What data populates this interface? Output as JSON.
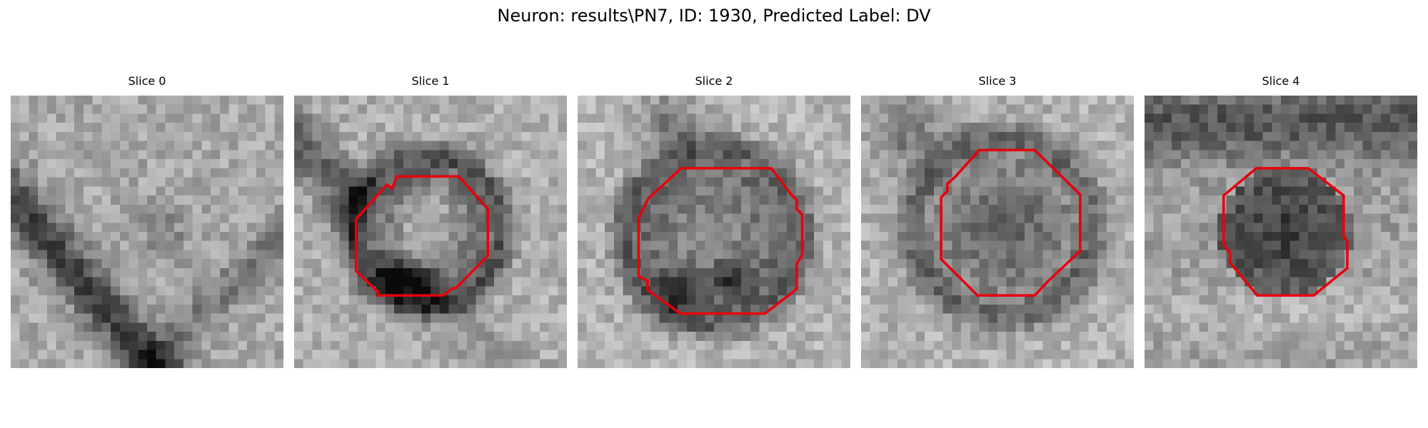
{
  "figure": {
    "title": "Neuron: results\\PN7, ID: 1930, Predicted Label: DV"
  },
  "slices": [
    {
      "title": "Slice 0",
      "has_contour": false,
      "contour_color": "#e8000b"
    },
    {
      "title": "Slice 1",
      "has_contour": true,
      "contour_color": "#e8000b"
    },
    {
      "title": "Slice 2",
      "has_contour": true,
      "contour_color": "#e8000b"
    },
    {
      "title": "Slice 3",
      "has_contour": true,
      "contour_color": "#e8000b"
    },
    {
      "title": "Slice 4",
      "has_contour": true,
      "contour_color": "#e8000b"
    }
  ]
}
